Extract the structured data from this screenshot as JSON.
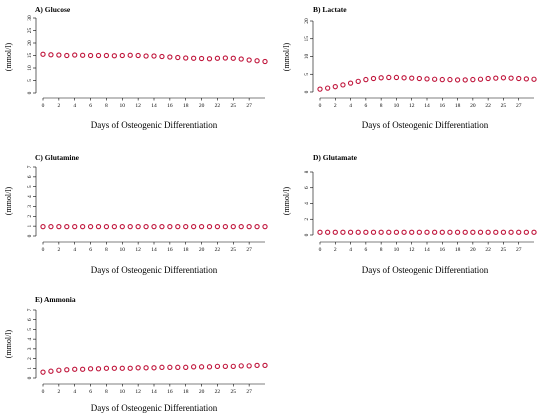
{
  "colors": {
    "box": "#5a6aa8",
    "median": "#2a2a8c",
    "mean": "#c0163c",
    "axis": "#000000",
    "outlier": "#5a6aa8"
  },
  "chart_data": [
    {
      "type": "box",
      "title": "A) Glucose",
      "xlabel": "Days of Osteogenic Differentiation",
      "ylabel": "(mmol/l)",
      "ylim": [
        0,
        30
      ],
      "yticks": [
        0,
        5,
        10,
        15,
        20,
        25,
        30
      ],
      "xtick_labels": [
        "0",
        "2",
        "4",
        "6",
        "8",
        "10",
        "12",
        "14",
        "16",
        "18",
        "20",
        "22",
        "25",
        "27"
      ],
      "means": [
        15.5,
        15.3,
        15.2,
        15.0,
        15.2,
        15.1,
        15.0,
        15.0,
        15.0,
        14.9,
        15.0,
        15.1,
        15.0,
        14.8,
        14.8,
        14.6,
        14.4,
        14.2,
        14.0,
        13.9,
        13.8,
        13.7,
        13.9,
        14.0,
        13.9,
        13.6,
        13.2,
        12.9,
        12.6
      ]
    },
    {
      "type": "box",
      "title": "B) Lactate",
      "xlabel": "Days of Osteogenic Differentiation",
      "ylabel": "(mmol/l)",
      "ylim": [
        0,
        20
      ],
      "yticks": [
        0,
        5,
        10,
        15,
        20
      ],
      "xtick_labels": [
        "0",
        "2",
        "4",
        "6",
        "8",
        "10",
        "12",
        "14",
        "16",
        "18",
        "20",
        "22",
        "25",
        "27"
      ],
      "means": [
        0.8,
        1.1,
        1.5,
        2.0,
        2.5,
        3.0,
        3.5,
        3.8,
        4.0,
        4.1,
        4.1,
        4.0,
        3.9,
        3.8,
        3.7,
        3.6,
        3.5,
        3.5,
        3.4,
        3.4,
        3.5,
        3.6,
        3.8,
        3.9,
        4.0,
        3.9,
        3.8,
        3.7,
        3.6
      ]
    },
    {
      "type": "box",
      "title": "C) Glutamine",
      "xlabel": "Days of Osteogenic Differentiation",
      "ylabel": "(mmol/l)",
      "ylim": [
        0,
        7
      ],
      "yticks": [
        0,
        1,
        2,
        3,
        4,
        5,
        6,
        7
      ],
      "xtick_labels": [
        "0",
        "2",
        "4",
        "6",
        "8",
        "10",
        "12",
        "14",
        "16",
        "18",
        "20",
        "22",
        "25",
        "27"
      ],
      "means": [
        0.95,
        0.95,
        0.95,
        0.95,
        0.95,
        0.95,
        0.95,
        0.95,
        0.95,
        0.95,
        0.95,
        0.95,
        0.95,
        0.95,
        0.95,
        0.95,
        0.95,
        0.95,
        0.95,
        0.95,
        0.95,
        0.95,
        0.95,
        0.95,
        0.95,
        0.95,
        0.95,
        0.95,
        0.95
      ]
    },
    {
      "type": "box",
      "title": "D) Glutamate",
      "xlabel": "Days of Osteogenic Differentiation",
      "ylabel": "(mmol/l)",
      "ylim": [
        0,
        8
      ],
      "yticks": [
        0,
        2,
        4,
        6,
        8
      ],
      "xtick_labels": [
        "0",
        "2",
        "4",
        "6",
        "8",
        "10",
        "12",
        "14",
        "16",
        "18",
        "20",
        "22",
        "25",
        "27"
      ],
      "means": [
        0.35,
        0.35,
        0.35,
        0.35,
        0.35,
        0.35,
        0.35,
        0.35,
        0.35,
        0.35,
        0.35,
        0.35,
        0.35,
        0.35,
        0.35,
        0.35,
        0.35,
        0.35,
        0.35,
        0.35,
        0.35,
        0.35,
        0.35,
        0.35,
        0.35,
        0.35,
        0.35,
        0.35,
        0.35
      ]
    },
    {
      "type": "box",
      "title": "E) Ammonia",
      "xlabel": "Days of Osteogenic Differentiation",
      "ylabel": "(mmol/l)",
      "ylim": [
        0,
        7
      ],
      "yticks": [
        0,
        1,
        2,
        3,
        4,
        5,
        6,
        7
      ],
      "xtick_labels": [
        "0",
        "2",
        "4",
        "6",
        "8",
        "10",
        "12",
        "14",
        "16",
        "18",
        "20",
        "22",
        "25",
        "27"
      ],
      "means": [
        0.6,
        0.7,
        0.8,
        0.85,
        0.9,
        0.9,
        0.95,
        0.95,
        1.0,
        1.0,
        1.0,
        1.0,
        1.05,
        1.05,
        1.05,
        1.1,
        1.1,
        1.1,
        1.1,
        1.15,
        1.15,
        1.15,
        1.2,
        1.2,
        1.2,
        1.25,
        1.25,
        1.3,
        1.3
      ]
    }
  ]
}
